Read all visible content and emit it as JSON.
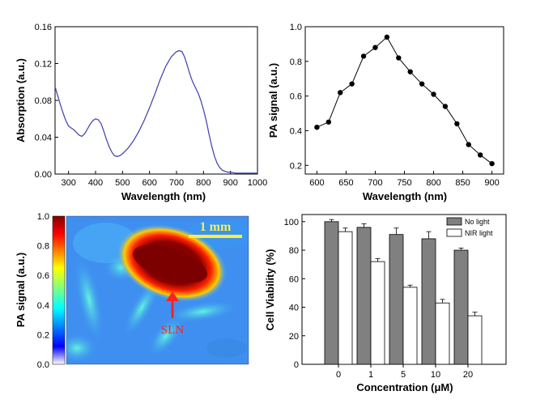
{
  "charts": {
    "absorption": {
      "type": "line",
      "xlabel": "Wavelength (nm)",
      "ylabel": "Absorption (a.u.)",
      "xlim": [
        250,
        1000
      ],
      "ylim": [
        0,
        0.16
      ],
      "xticks": [
        "300",
        "400",
        "500",
        "600",
        "700",
        "800",
        "900",
        "1000"
      ],
      "yticks": [
        "0.00",
        "0.04",
        "0.08",
        "0.12",
        "0.16"
      ],
      "line_color": "#4a4ab0",
      "x": [
        250,
        260,
        270,
        280,
        290,
        300,
        310,
        320,
        330,
        340,
        350,
        360,
        370,
        380,
        390,
        400,
        410,
        420,
        430,
        440,
        450,
        460,
        470,
        480,
        490,
        500,
        520,
        540,
        560,
        580,
        600,
        620,
        640,
        660,
        680,
        700,
        710,
        720,
        730,
        740,
        750,
        760,
        770,
        780,
        790,
        800,
        810,
        820,
        830,
        840,
        850,
        860,
        870,
        880,
        890,
        900,
        920,
        940,
        960,
        980,
        1000
      ],
      "y": [
        0.095,
        0.085,
        0.075,
        0.066,
        0.058,
        0.052,
        0.05,
        0.048,
        0.045,
        0.042,
        0.041,
        0.044,
        0.049,
        0.054,
        0.058,
        0.06,
        0.059,
        0.055,
        0.047,
        0.038,
        0.03,
        0.024,
        0.02,
        0.019,
        0.02,
        0.022,
        0.028,
        0.036,
        0.046,
        0.058,
        0.072,
        0.087,
        0.103,
        0.117,
        0.127,
        0.133,
        0.134,
        0.133,
        0.127,
        0.118,
        0.108,
        0.1,
        0.094,
        0.088,
        0.08,
        0.07,
        0.058,
        0.044,
        0.031,
        0.02,
        0.012,
        0.007,
        0.004,
        0.003,
        0.002,
        0.002,
        0.001,
        0.001,
        0.001,
        0.001,
        0.001
      ]
    },
    "pa_spectrum": {
      "type": "line",
      "xlabel": "Wavelength (nm)",
      "ylabel": "PA signal (a.u.)",
      "xlim": [
        580,
        920
      ],
      "ylim": [
        0.15,
        1.0
      ],
      "xticks": [
        "600",
        "650",
        "700",
        "750",
        "800",
        "850",
        "900"
      ],
      "yticks": [
        "0.2",
        "0.4",
        "0.6",
        "0.8",
        "1.0"
      ],
      "x": [
        600,
        620,
        640,
        660,
        680,
        700,
        720,
        740,
        760,
        780,
        800,
        820,
        840,
        860,
        880,
        900
      ],
      "y": [
        0.42,
        0.45,
        0.62,
        0.67,
        0.83,
        0.88,
        0.94,
        0.82,
        0.74,
        0.67,
        0.61,
        0.54,
        0.44,
        0.32,
        0.26,
        0.21
      ]
    },
    "pa_image": {
      "type": "heatmap",
      "ylabel": "PA signal (a.u.)",
      "colorbar_ticks": [
        "1.0",
        "0.8",
        "0.6",
        "0.4",
        "0.2",
        "0.0"
      ],
      "scale_label": "1 mm",
      "annotation": "SLN",
      "colors": {
        "scale_bar": "#ffee44",
        "annotation": "#ff2020"
      }
    },
    "viability": {
      "type": "bar",
      "xlabel": "Concentration (μM)",
      "ylabel": "Cell Viability (%)",
      "ylim": [
        0,
        105
      ],
      "yticks": [
        "0",
        "20",
        "40",
        "60",
        "80",
        "100"
      ],
      "categories": [
        "0",
        "1",
        "5",
        "10",
        "20"
      ],
      "series": [
        {
          "name": "No light",
          "values": [
            100,
            96,
            91,
            88,
            80
          ],
          "errors": [
            1.5,
            2.5,
            4.5,
            5.0,
            1.5
          ],
          "color": "#808080"
        },
        {
          "name": "NIR light",
          "values": [
            93,
            72,
            54,
            43,
            34
          ],
          "errors": [
            2.5,
            2.0,
            1.5,
            2.5,
            2.5
          ],
          "color": "#ffffff"
        }
      ],
      "legend_position": "top-right"
    }
  }
}
